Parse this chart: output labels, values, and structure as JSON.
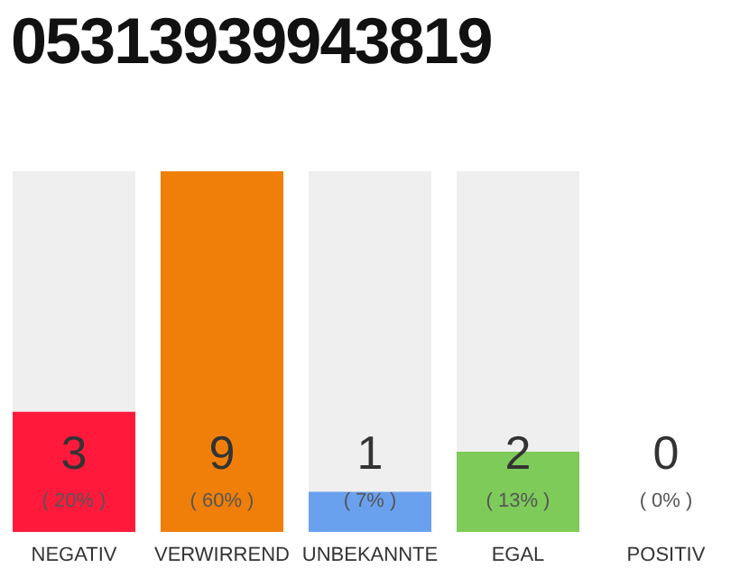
{
  "chart_data": {
    "type": "bar",
    "title": "05313939943819",
    "categories": [
      "NEGATIV",
      "VERWIRREND",
      "UNBEKANNTE",
      "EGAL",
      "POSITIV"
    ],
    "values": [
      3,
      9,
      1,
      2,
      0
    ],
    "colors": [
      "#ff1a3c",
      "#f07f0a",
      "#6aa1ef",
      "#7ecb5a",
      "#a0a0a0"
    ],
    "data_labels": true,
    "annotations": [
      "( 20% )",
      "( 60% )",
      "( 7% )",
      "( 13% )",
      "( 0% )"
    ],
    "tick_labels": "x"
  }
}
